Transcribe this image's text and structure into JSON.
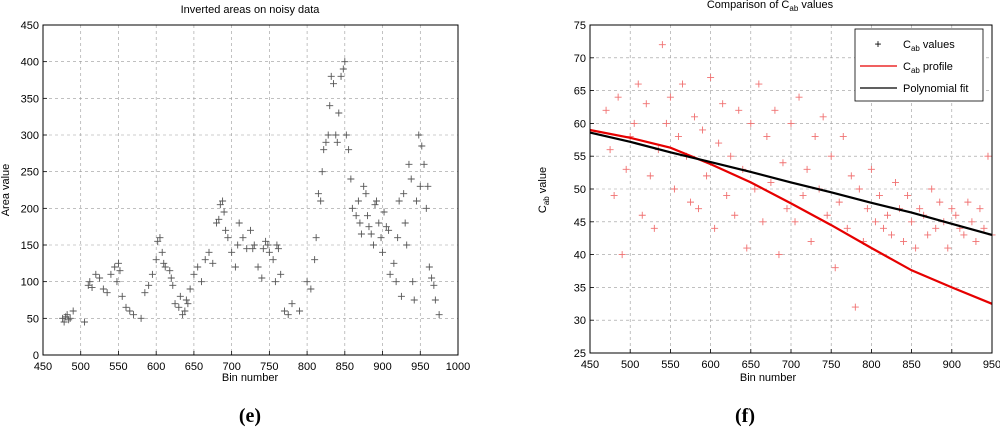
{
  "chart_data": [
    {
      "type": "scatter",
      "title": "Inverted areas on noisy data",
      "xlabel": "Bin number",
      "ylabel": "Area value",
      "xlim": [
        450,
        1000
      ],
      "ylim": [
        0,
        450
      ],
      "xticks": [
        450,
        500,
        550,
        600,
        650,
        700,
        750,
        800,
        850,
        900,
        950,
        1000
      ],
      "yticks": [
        0,
        50,
        100,
        150,
        200,
        250,
        300,
        350,
        400,
        450
      ],
      "grid": true,
      "legend": null,
      "marker": "+",
      "color": "#555555",
      "caption": "(e)",
      "series": [
        {
          "x": [
            476,
            478,
            480,
            482,
            484,
            486,
            490,
            505,
            510,
            512,
            515,
            520,
            525,
            530,
            535,
            540,
            545,
            548,
            550,
            552,
            555,
            560,
            565,
            570,
            580,
            585,
            590,
            595,
            600,
            602,
            605,
            608,
            610,
            612,
            618,
            620,
            622,
            625,
            630,
            632,
            635,
            638,
            640,
            642,
            645,
            650,
            655,
            660,
            665,
            670,
            675,
            680,
            683,
            685,
            688,
            690,
            692,
            695,
            700,
            705,
            708,
            710,
            715,
            720,
            725,
            728,
            730,
            735,
            740,
            742,
            745,
            748,
            750,
            755,
            758,
            760,
            762,
            765,
            770,
            775,
            780,
            790,
            800,
            805,
            810,
            812,
            815,
            818,
            820,
            822,
            825,
            828,
            830,
            832,
            835,
            838,
            840,
            842,
            845,
            848,
            850,
            852,
            855,
            858,
            860,
            865,
            868,
            870,
            872,
            875,
            878,
            880,
            882,
            885,
            888,
            890,
            892,
            895,
            898,
            900,
            902,
            905,
            908,
            910,
            915,
            918,
            920,
            922,
            925,
            928,
            930,
            932,
            935,
            938,
            940,
            942,
            945,
            948,
            950,
            952,
            955,
            958,
            960,
            962,
            965,
            968,
            970,
            975
          ],
          "y": [
            50,
            45,
            52,
            55,
            48,
            50,
            60,
            45,
            95,
            100,
            92,
            110,
            105,
            90,
            85,
            110,
            120,
            100,
            125,
            115,
            80,
            65,
            60,
            55,
            50,
            85,
            95,
            110,
            130,
            155,
            160,
            140,
            125,
            120,
            115,
            105,
            95,
            70,
            65,
            80,
            55,
            60,
            75,
            70,
            90,
            110,
            120,
            100,
            130,
            140,
            125,
            180,
            185,
            205,
            210,
            195,
            170,
            160,
            140,
            120,
            150,
            180,
            160,
            145,
            170,
            145,
            150,
            120,
            105,
            145,
            155,
            150,
            140,
            130,
            100,
            150,
            145,
            110,
            60,
            55,
            70,
            60,
            100,
            90,
            130,
            160,
            220,
            210,
            250,
            280,
            290,
            300,
            340,
            380,
            370,
            300,
            290,
            330,
            380,
            390,
            400,
            300,
            280,
            240,
            200,
            190,
            210,
            180,
            165,
            230,
            220,
            190,
            175,
            165,
            150,
            205,
            210,
            180,
            160,
            140,
            195,
            175,
            170,
            110,
            125,
            100,
            160,
            210,
            80,
            220,
            180,
            150,
            260,
            240,
            100,
            75,
            210,
            300,
            230,
            285,
            260,
            200,
            230,
            120,
            105,
            95,
            75,
            55
          ]
        }
      ]
    },
    {
      "type": "scatter",
      "title_parts": [
        "Comparison of C",
        "ab",
        " values"
      ],
      "xlabel": "Bin number",
      "ylabel_parts": [
        "C",
        "ab",
        " value"
      ],
      "xlim": [
        450,
        950
      ],
      "ylim": [
        25,
        75
      ],
      "xticks": [
        450,
        500,
        550,
        600,
        650,
        700,
        750,
        800,
        850,
        900,
        950
      ],
      "yticks": [
        25,
        30,
        35,
        40,
        45,
        50,
        55,
        60,
        65,
        70,
        75
      ],
      "grid": true,
      "legend_position": "top-right",
      "caption": "(f)",
      "series": [
        {
          "name_parts": [
            "C",
            "ab",
            " values"
          ],
          "kind": "markers",
          "marker": "+",
          "color": "#f07070",
          "x": [
            470,
            475,
            480,
            485,
            490,
            495,
            500,
            505,
            510,
            515,
            520,
            525,
            530,
            535,
            540,
            545,
            550,
            555,
            560,
            565,
            570,
            575,
            580,
            585,
            590,
            595,
            600,
            605,
            610,
            615,
            620,
            625,
            630,
            635,
            640,
            645,
            650,
            655,
            660,
            665,
            670,
            675,
            680,
            685,
            690,
            695,
            700,
            705,
            710,
            715,
            720,
            725,
            730,
            735,
            740,
            745,
            750,
            755,
            760,
            765,
            770,
            775,
            780,
            785,
            790,
            795,
            800,
            805,
            810,
            815,
            820,
            825,
            830,
            835,
            840,
            845,
            850,
            855,
            860,
            865,
            870,
            875,
            880,
            885,
            890,
            895,
            900,
            905,
            910,
            915,
            920,
            925,
            930,
            935,
            940,
            945,
            950
          ],
          "y": [
            62,
            56,
            49,
            64,
            40,
            53,
            58,
            60,
            66,
            46,
            63,
            52,
            44,
            56,
            72,
            60,
            64,
            50,
            58,
            66,
            55,
            48,
            61,
            47,
            59,
            52,
            67,
            44,
            57,
            63,
            49,
            55,
            46,
            62,
            53,
            41,
            60,
            50,
            66,
            45,
            58,
            51,
            62,
            40,
            54,
            47,
            60,
            45,
            64,
            49,
            53,
            42,
            58,
            50,
            61,
            46,
            55,
            38,
            48,
            58,
            44,
            52,
            32,
            50,
            42,
            47,
            53,
            45,
            49,
            44,
            46,
            43,
            51,
            47,
            42,
            49,
            45,
            41,
            47,
            46,
            43,
            50,
            44,
            48,
            45,
            41,
            47,
            46,
            44,
            43,
            48,
            45,
            42,
            47,
            44,
            55,
            43
          ]
        },
        {
          "name_parts": [
            "C",
            "ab",
            " profile"
          ],
          "kind": "line",
          "color": "#e60000",
          "x": [
            450,
            500,
            550,
            600,
            650,
            700,
            750,
            800,
            850,
            900,
            950
          ],
          "y": [
            59,
            57.8,
            56.3,
            53.8,
            51,
            47.8,
            44.5,
            41,
            37.6,
            35,
            32.5
          ]
        },
        {
          "name_parts": [
            "Polynomial fit"
          ],
          "kind": "line",
          "color": "#000000",
          "x": [
            450,
            500,
            550,
            600,
            650,
            700,
            750,
            800,
            850,
            900,
            950
          ],
          "y": [
            58.6,
            57.2,
            55.6,
            54.1,
            52.6,
            51,
            49.5,
            47.9,
            46.4,
            44.7,
            43
          ]
        }
      ]
    }
  ]
}
